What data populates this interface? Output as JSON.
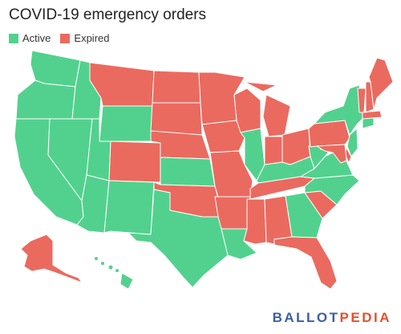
{
  "title": "COVID-19 emergency orders",
  "legend": [
    {
      "label": "Active",
      "color": "#52d18e"
    },
    {
      "label": "Expired",
      "color": "#ea6a5f"
    }
  ],
  "states": {
    "WA": "active",
    "OR": "active",
    "CA": "active",
    "NV": "active",
    "ID": "active",
    "UT": "active",
    "AZ": "active",
    "NM": "active",
    "WY": "active",
    "KS": "active",
    "TX": "active",
    "LA": "active",
    "IL": "active",
    "KY": "active",
    "GA": "active",
    "NC": "active",
    "VA": "active",
    "WV": "active",
    "NY": "active",
    "CT": "active",
    "NJ": "active",
    "HI": "active",
    "MT": "expired",
    "ND": "expired",
    "SD": "expired",
    "NE": "expired",
    "CO": "expired",
    "OK": "expired",
    "MN": "expired",
    "IA": "expired",
    "MO": "expired",
    "AR": "expired",
    "MS": "expired",
    "AL": "expired",
    "TN": "expired",
    "WI": "expired",
    "MI": "expired",
    "IN": "expired",
    "OH": "expired",
    "PA": "expired",
    "MD": "expired",
    "DE": "expired",
    "SC": "expired",
    "FL": "expired",
    "ME": "expired",
    "NH": "expired",
    "VT": "expired",
    "MA": "expired",
    "AK": "expired"
  },
  "brand": {
    "part1": "BALLOT",
    "part2": "PEDIA"
  }
}
